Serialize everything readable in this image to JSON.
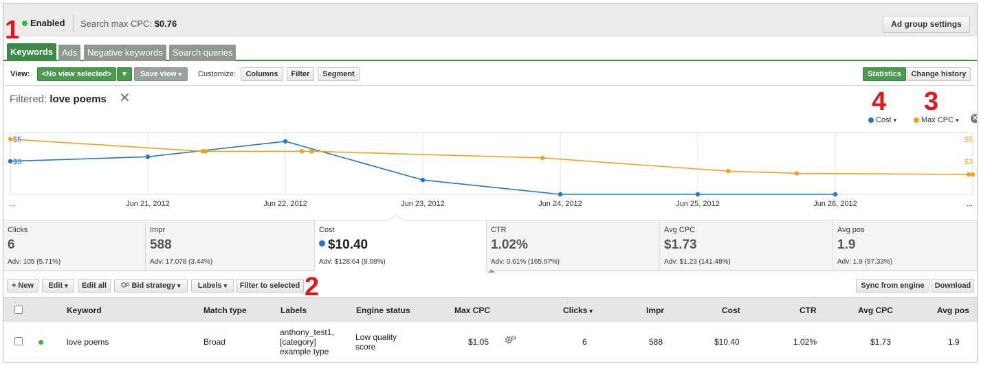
{
  "status": {
    "label": "Enabled",
    "color": "#2eb82e"
  },
  "search_max_cpc": {
    "label": "Search max CPC:",
    "value": "$0.76"
  },
  "ad_group_settings_label": "Ad group settings",
  "tabs": [
    {
      "label": "Keywords",
      "active": true
    },
    {
      "label": "Ads",
      "active": false
    },
    {
      "label": "Negative keywords",
      "active": false
    },
    {
      "label": "Search queries",
      "active": false
    }
  ],
  "view_toolbar": {
    "view_label": "View:",
    "view_selected": "<No view selected>",
    "save_view_label": "Save view",
    "customize_label": "Customize:",
    "columns_label": "Columns",
    "filter_label": "Filter",
    "segment_label": "Segment",
    "statistics_label": "Statistics",
    "change_history_label": "Change history"
  },
  "filter": {
    "prefix": "Filtered:",
    "term": "love poems",
    "close_icon": "close-icon"
  },
  "legend": {
    "cost_label": "Cost",
    "maxcpc_label": "Max CPC",
    "cost_color": "#1f78c8",
    "maxcpc_color": "#f5a01a"
  },
  "annotations": [
    "1",
    "2",
    "3",
    "4"
  ],
  "chart_data": {
    "type": "line",
    "x_ticks": [
      "...",
      "Jun 21, 2012",
      "Jun 22, 2012",
      "Jun 23, 2012",
      "Jun 24, 2012",
      "Jun 25, 2012",
      "Jun 26, 2012",
      "..."
    ],
    "y_left_ticks": [
      "$5",
      "$3"
    ],
    "y_right_ticks": [
      "$5",
      "$3"
    ],
    "series": [
      {
        "name": "Cost",
        "color": "#1f78c8",
        "axis": "left",
        "points": [
          [
            0,
            3.0
          ],
          [
            1,
            3.4
          ],
          [
            2,
            4.8
          ],
          [
            3,
            1.3
          ],
          [
            4,
            0.0
          ],
          [
            5,
            0.0
          ],
          [
            6,
            0.0
          ]
        ]
      },
      {
        "name": "Max CPC",
        "color": "#f5a01a",
        "axis": "right",
        "points": [
          [
            0,
            5.0
          ],
          [
            1.4,
            3.9
          ],
          [
            1.42,
            3.9
          ],
          [
            2.12,
            3.9
          ],
          [
            2.19,
            3.9
          ],
          [
            3.87,
            3.3
          ],
          [
            5.22,
            2.1
          ],
          [
            5.72,
            1.9
          ],
          [
            6.97,
            1.8
          ],
          [
            7.0,
            1.8
          ]
        ]
      }
    ],
    "grid": true
  },
  "stats": [
    {
      "label": "Clicks",
      "value": "6",
      "adv": "Adv: 105 (5.71%)",
      "active": false
    },
    {
      "label": "Impr",
      "value": "588",
      "adv": "Adv: 17,078 (3.44%)",
      "active": false
    },
    {
      "label": "Cost",
      "value": "$10.40",
      "adv": "Adv: $128.64 (8.08%)",
      "active": true
    },
    {
      "label": "CTR",
      "value": "1.02%",
      "adv": "Adv: 0.61% (165.97%)",
      "active": false
    },
    {
      "label": "Avg CPC",
      "value": "$1.73",
      "adv": "Adv: $1.23 (141.48%)",
      "active": false
    },
    {
      "label": "Avg pos",
      "value": "1.9",
      "adv": "Adv: 1.9 (97.33%)",
      "active": false
    }
  ],
  "actions": {
    "new_label": "+ New",
    "edit_label": "Edit",
    "edit_all_label": "Edit all",
    "bid_strategy_label": "Bid strategy",
    "labels_label": "Labels",
    "filter_to_selected_label": "Filter to selected",
    "sync_label": "Sync from engine",
    "download_label": "Download"
  },
  "table": {
    "columns": [
      "Keyword",
      "Match type",
      "Labels",
      "Engine status",
      "Max CPC",
      "Clicks",
      "Impr",
      "Cost",
      "CTR",
      "Avg CPC",
      "Avg pos"
    ],
    "sort_column": "Clicks",
    "rows": [
      {
        "keyword": "love poems",
        "match_type": "Broad",
        "labels": [
          "anthony_test1,",
          "[category]",
          "example type"
        ],
        "engine_status": [
          "Low quality",
          "score"
        ],
        "max_cpc": "$1.05",
        "clicks": "6",
        "impr": "588",
        "cost": "$10.40",
        "ctr": "1.02%",
        "avg_cpc": "$1.73",
        "avg_pos": "1.9"
      }
    ]
  }
}
